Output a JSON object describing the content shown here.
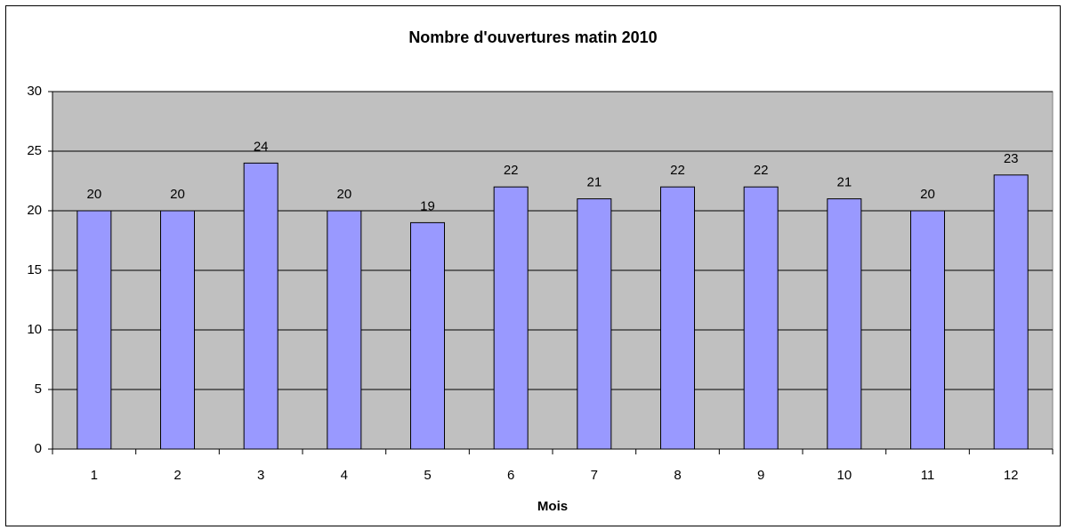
{
  "chart_data": {
    "type": "bar",
    "title": "Nombre d'ouvertures matin 2010",
    "x_label": "Mois",
    "categories": [
      "1",
      "2",
      "3",
      "4",
      "5",
      "6",
      "7",
      "8",
      "9",
      "10",
      "11",
      "12"
    ],
    "values": [
      20,
      20,
      24,
      20,
      19,
      22,
      21,
      22,
      22,
      21,
      20,
      23
    ],
    "color": "#9999ff",
    "ylim": [
      0,
      30
    ],
    "yticks": [
      0,
      5,
      10,
      15,
      20,
      25,
      30
    ],
    "grid": true
  }
}
